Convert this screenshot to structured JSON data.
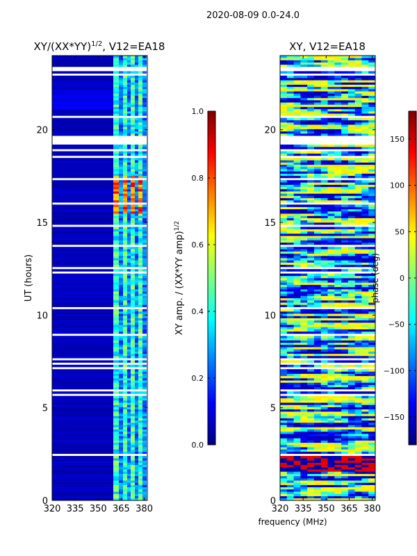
{
  "suptitle": "2020-08-09 0.0-24.0",
  "xlabel": "frequency (MHz)",
  "colormap": [
    "#00007f",
    "#0000ff",
    "#007fff",
    "#00ffff",
    "#7fff7f",
    "#ffff00",
    "#ff7f00",
    "#ff0000",
    "#7f0000"
  ],
  "chart_data": [
    {
      "type": "heatmap",
      "title_main": "XY/(XX*YY)",
      "title_sup": "1/2",
      "title_tail": ", V12=EA18",
      "ylabel": "UT (hours)",
      "xlim": [
        320,
        382
      ],
      "ylim": [
        0,
        24
      ],
      "xticks": [
        "320",
        "335",
        "350",
        "365",
        "380"
      ],
      "xtick_values": [
        320,
        335,
        350,
        365,
        380
      ],
      "yticks": [
        "0",
        "5",
        "10",
        "15",
        "20"
      ],
      "ytick_values": [
        0,
        5,
        10,
        15,
        20
      ],
      "colorbar": {
        "label_main": "XY amp. / (XX*YY amp)",
        "label_sup": "1/2",
        "range": [
          0.0,
          1.0
        ],
        "ticks": [
          "0.0",
          "0.2",
          "0.4",
          "0.6",
          "0.8",
          "1.0"
        ],
        "tick_values": [
          0.0,
          0.2,
          0.4,
          0.6,
          0.8,
          1.0
        ]
      }
    },
    {
      "type": "heatmap",
      "title_main": "XY, V12=EA18",
      "ylabel": "",
      "xlim": [
        320,
        382
      ],
      "ylim": [
        0,
        24
      ],
      "xticks": [
        "320",
        "335",
        "350",
        "365",
        "380"
      ],
      "xtick_values": [
        320,
        335,
        350,
        365,
        380
      ],
      "yticks": [
        "0",
        "5",
        "10",
        "15",
        "20"
      ],
      "ytick_values": [
        0,
        5,
        10,
        15,
        20
      ],
      "colorbar": {
        "label_main": "phase (deg)",
        "range": [
          -180,
          180
        ],
        "ticks": [
          "−150",
          "−100",
          "−50",
          "0",
          "50",
          "100",
          "150"
        ],
        "tick_values": [
          -150,
          -100,
          -50,
          0,
          50,
          100,
          150
        ]
      }
    }
  ]
}
